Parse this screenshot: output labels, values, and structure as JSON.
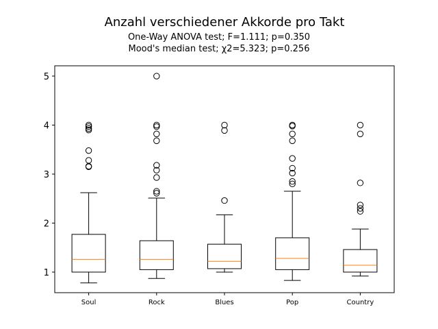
{
  "chart_data": {
    "type": "boxplot",
    "title": "Anzahl verschiedener Akkorde pro Takt",
    "subtitle_lines": [
      "One-Way ANOVA test; F=1.111; p=0.350",
      "Mood's median test; χ2=5.323; p=0.256"
    ],
    "xlabel": "",
    "ylabel": "",
    "ylim": [
      0.58,
      5.21
    ],
    "yticks": [
      1,
      2,
      3,
      4,
      5
    ],
    "grid": false,
    "categories": [
      "Soul",
      "Rock",
      "Blues",
      "Pop",
      "Country"
    ],
    "boxes": [
      {
        "whisker_low": 0.78,
        "q1": 1.0,
        "median": 1.26,
        "q3": 1.77,
        "whisker_high": 2.62,
        "outliers": [
          4.0,
          3.97,
          3.93,
          3.9,
          3.48,
          3.28,
          3.16,
          3.15
        ]
      },
      {
        "whisker_low": 0.87,
        "q1": 1.05,
        "median": 1.26,
        "q3": 1.64,
        "whisker_high": 2.51,
        "outliers": [
          5.0,
          4.0,
          3.97,
          3.82,
          3.68,
          3.18,
          3.08,
          2.93,
          2.65,
          2.61
        ]
      },
      {
        "whisker_low": 1.0,
        "q1": 1.07,
        "median": 1.22,
        "q3": 1.57,
        "whisker_high": 2.17,
        "outliers": [
          4.0,
          3.89,
          2.46
        ]
      },
      {
        "whisker_low": 0.83,
        "q1": 1.05,
        "median": 1.28,
        "q3": 1.7,
        "whisker_high": 2.65,
        "outliers": [
          4.0,
          3.98,
          3.82,
          3.68,
          3.32,
          3.12,
          3.02,
          2.85,
          2.8
        ]
      },
      {
        "whisker_low": 0.92,
        "q1": 1.0,
        "median": 1.14,
        "q3": 1.46,
        "whisker_high": 1.88,
        "outliers": [
          4.0,
          3.82,
          2.82,
          2.37,
          2.3,
          2.24
        ]
      }
    ],
    "colors": {
      "box": "#000000",
      "median": "#ff7f0e",
      "outlier": "#000000"
    }
  }
}
